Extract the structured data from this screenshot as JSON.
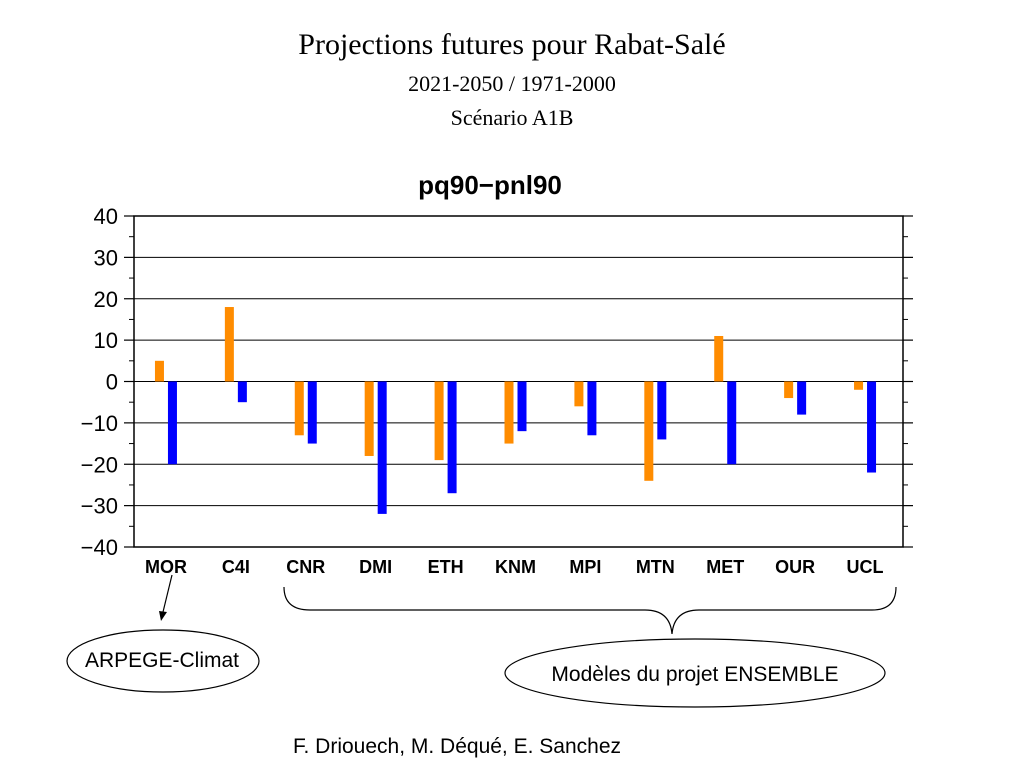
{
  "slide": {
    "title": "Projections futures pour Rabat-Salé",
    "period": "2021-2050 / 1971-2000",
    "scenario": "Scénario A1B",
    "credit": "F. Driouech, M. Déqué, E. Sanchez"
  },
  "annotations": {
    "arpege": "ARPEGE-Climat",
    "ensemble": "Modèles du projet ENSEMBLE"
  },
  "colors": {
    "series1": "#ff8c00",
    "series2": "#0000ff",
    "grid": "#000000"
  },
  "chart_data": {
    "type": "bar",
    "title": "pq90−pnl90",
    "xlabel": "",
    "ylabel": "",
    "ylim": [
      -40,
      40
    ],
    "yticks": [
      40,
      30,
      20,
      10,
      0,
      -10,
      -20,
      -30,
      -40
    ],
    "ytick_labels": [
      "40",
      "30",
      "20",
      "10",
      "0",
      "−10",
      "−20",
      "−30",
      "−40"
    ],
    "grid": true,
    "categories": [
      "MOR",
      "C4I",
      "CNR",
      "DMI",
      "ETH",
      "KNM",
      "MPI",
      "MTN",
      "MET",
      "OUR",
      "UCL"
    ],
    "series": [
      {
        "values": [
          5,
          18,
          -13,
          -18,
          -19,
          -15,
          -6,
          -24,
          11,
          -4,
          -2
        ]
      },
      {
        "values": [
          -20,
          -5,
          -15,
          -32,
          -27,
          -12,
          -13,
          -14,
          -20,
          -8,
          -22
        ]
      }
    ]
  }
}
